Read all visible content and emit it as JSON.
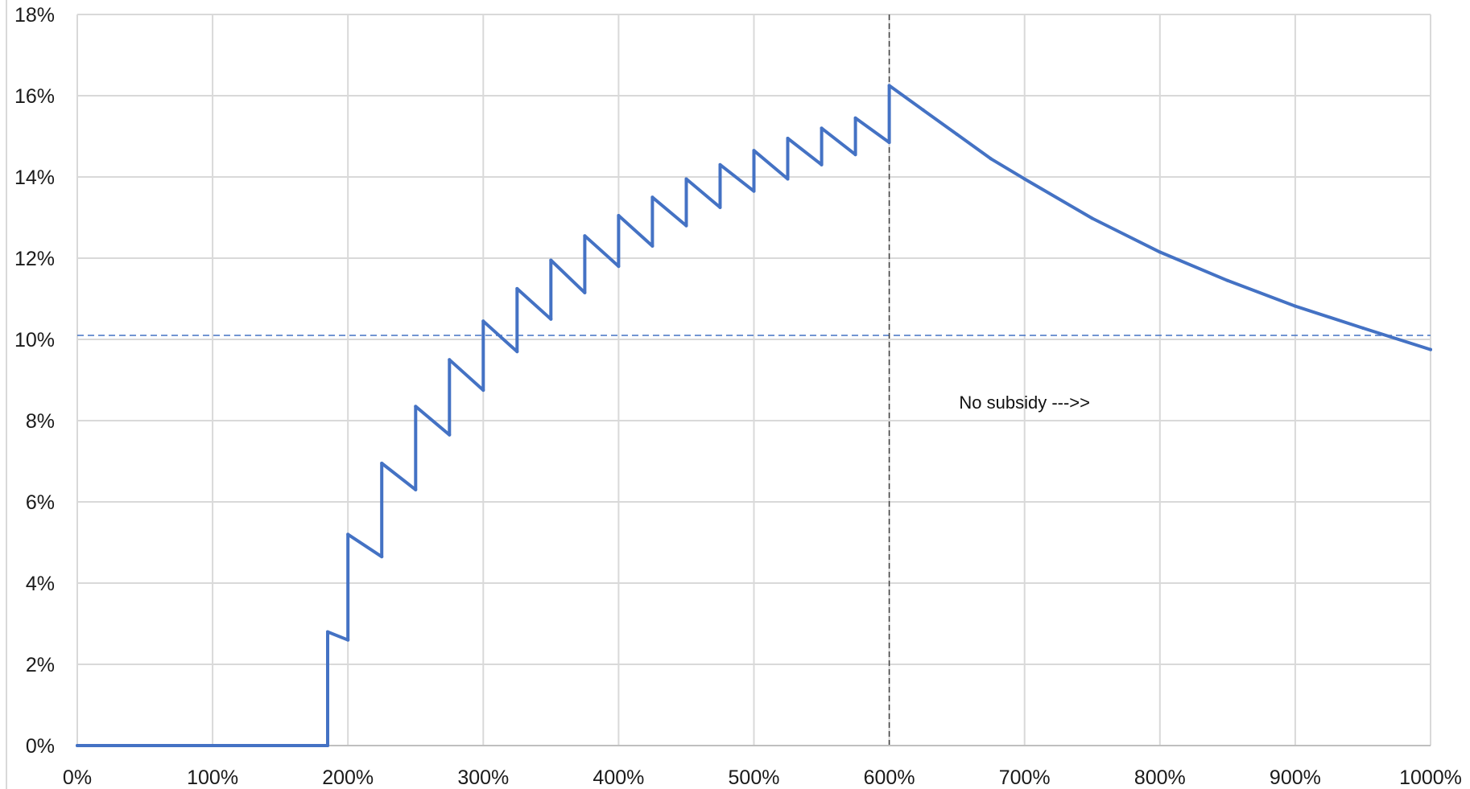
{
  "chart_data": {
    "type": "line",
    "title": "",
    "xlabel": "",
    "ylabel": "",
    "xlim": [
      0,
      1000
    ],
    "ylim": [
      0,
      18
    ],
    "x_unit": "%",
    "y_unit": "%",
    "grid": true,
    "legend": "none",
    "x_ticks": [
      0,
      100,
      200,
      300,
      400,
      500,
      600,
      700,
      800,
      900,
      1000
    ],
    "x_tick_labels": [
      "0%",
      "100%",
      "200%",
      "300%",
      "400%",
      "500%",
      "600%",
      "700%",
      "800%",
      "900%",
      "1000%"
    ],
    "y_ticks": [
      0,
      2,
      4,
      6,
      8,
      10,
      12,
      14,
      16,
      18
    ],
    "y_tick_labels": [
      "0%",
      "2%",
      "4%",
      "6%",
      "8%",
      "10%",
      "12%",
      "14%",
      "16%",
      "18%"
    ],
    "series": [
      {
        "color": "#4472C4",
        "x": [
          0,
          185,
          185,
          200,
          200,
          225,
          225,
          250,
          250,
          275,
          275,
          300,
          300,
          325,
          325,
          350,
          350,
          375,
          375,
          400,
          400,
          425,
          425,
          450,
          450,
          475,
          475,
          500,
          500,
          525,
          525,
          550,
          550,
          575,
          575,
          600,
          600,
          625,
          650,
          675,
          700,
          750,
          800,
          850,
          900,
          950,
          1000
        ],
        "y": [
          0,
          0,
          2.8,
          2.6,
          5.2,
          4.65,
          6.95,
          6.3,
          8.35,
          7.65,
          9.5,
          8.75,
          10.45,
          9.7,
          11.25,
          10.5,
          11.95,
          11.15,
          12.55,
          11.8,
          13.05,
          12.3,
          13.5,
          12.8,
          13.95,
          13.25,
          14.3,
          13.65,
          14.65,
          13.95,
          14.95,
          14.3,
          15.2,
          14.55,
          15.45,
          14.85,
          16.25,
          15.65,
          15.05,
          14.45,
          13.95,
          12.98,
          12.15,
          11.45,
          10.82,
          10.28,
          9.75
        ]
      }
    ],
    "reference_lines": [
      {
        "orientation": "horizontal",
        "value": 10.1,
        "style": "dashed",
        "color": "#4472C4"
      },
      {
        "orientation": "vertical",
        "value": 600,
        "style": "dashed",
        "color": "#404040"
      }
    ],
    "annotations": [
      {
        "text": "No subsidy --->>",
        "x": 700,
        "y": 8.3
      }
    ]
  }
}
